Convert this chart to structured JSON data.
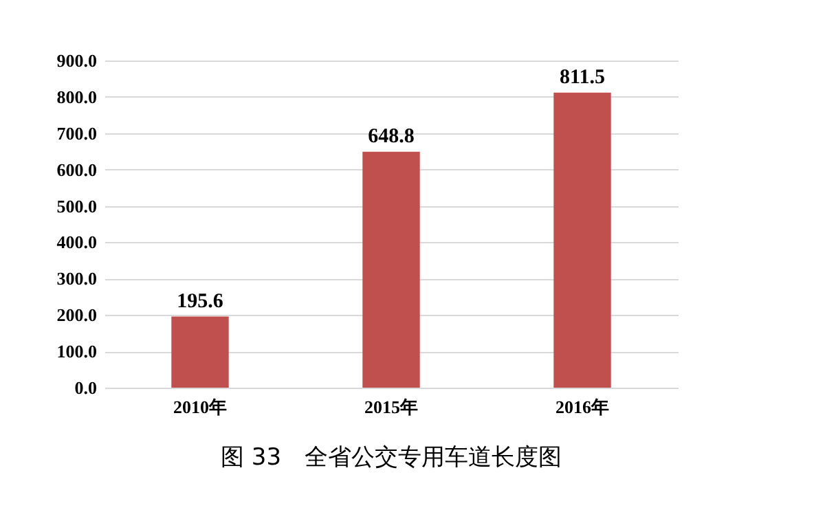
{
  "chart_data": {
    "type": "bar",
    "title": "图 33　全省公交专用车道长度图",
    "categories": [
      "2010年",
      "2015年",
      "2016年"
    ],
    "values": [
      195.6,
      648.8,
      811.5
    ],
    "color": "#c0504d",
    "ylim": [
      0,
      900
    ],
    "yticks": [
      {
        "value": 0,
        "label": "0.0"
      },
      {
        "value": 100,
        "label": "100.0"
      },
      {
        "value": 200,
        "label": "200.0"
      },
      {
        "value": 300,
        "label": "300.0"
      },
      {
        "value": 400,
        "label": "400.0"
      },
      {
        "value": 500,
        "label": "500.0"
      },
      {
        "value": 600,
        "label": "600.0"
      },
      {
        "value": 700,
        "label": "700.0"
      },
      {
        "value": 800,
        "label": "800.0"
      },
      {
        "value": 900,
        "label": "900.0"
      }
    ],
    "grid": "y",
    "data_labels": true
  }
}
